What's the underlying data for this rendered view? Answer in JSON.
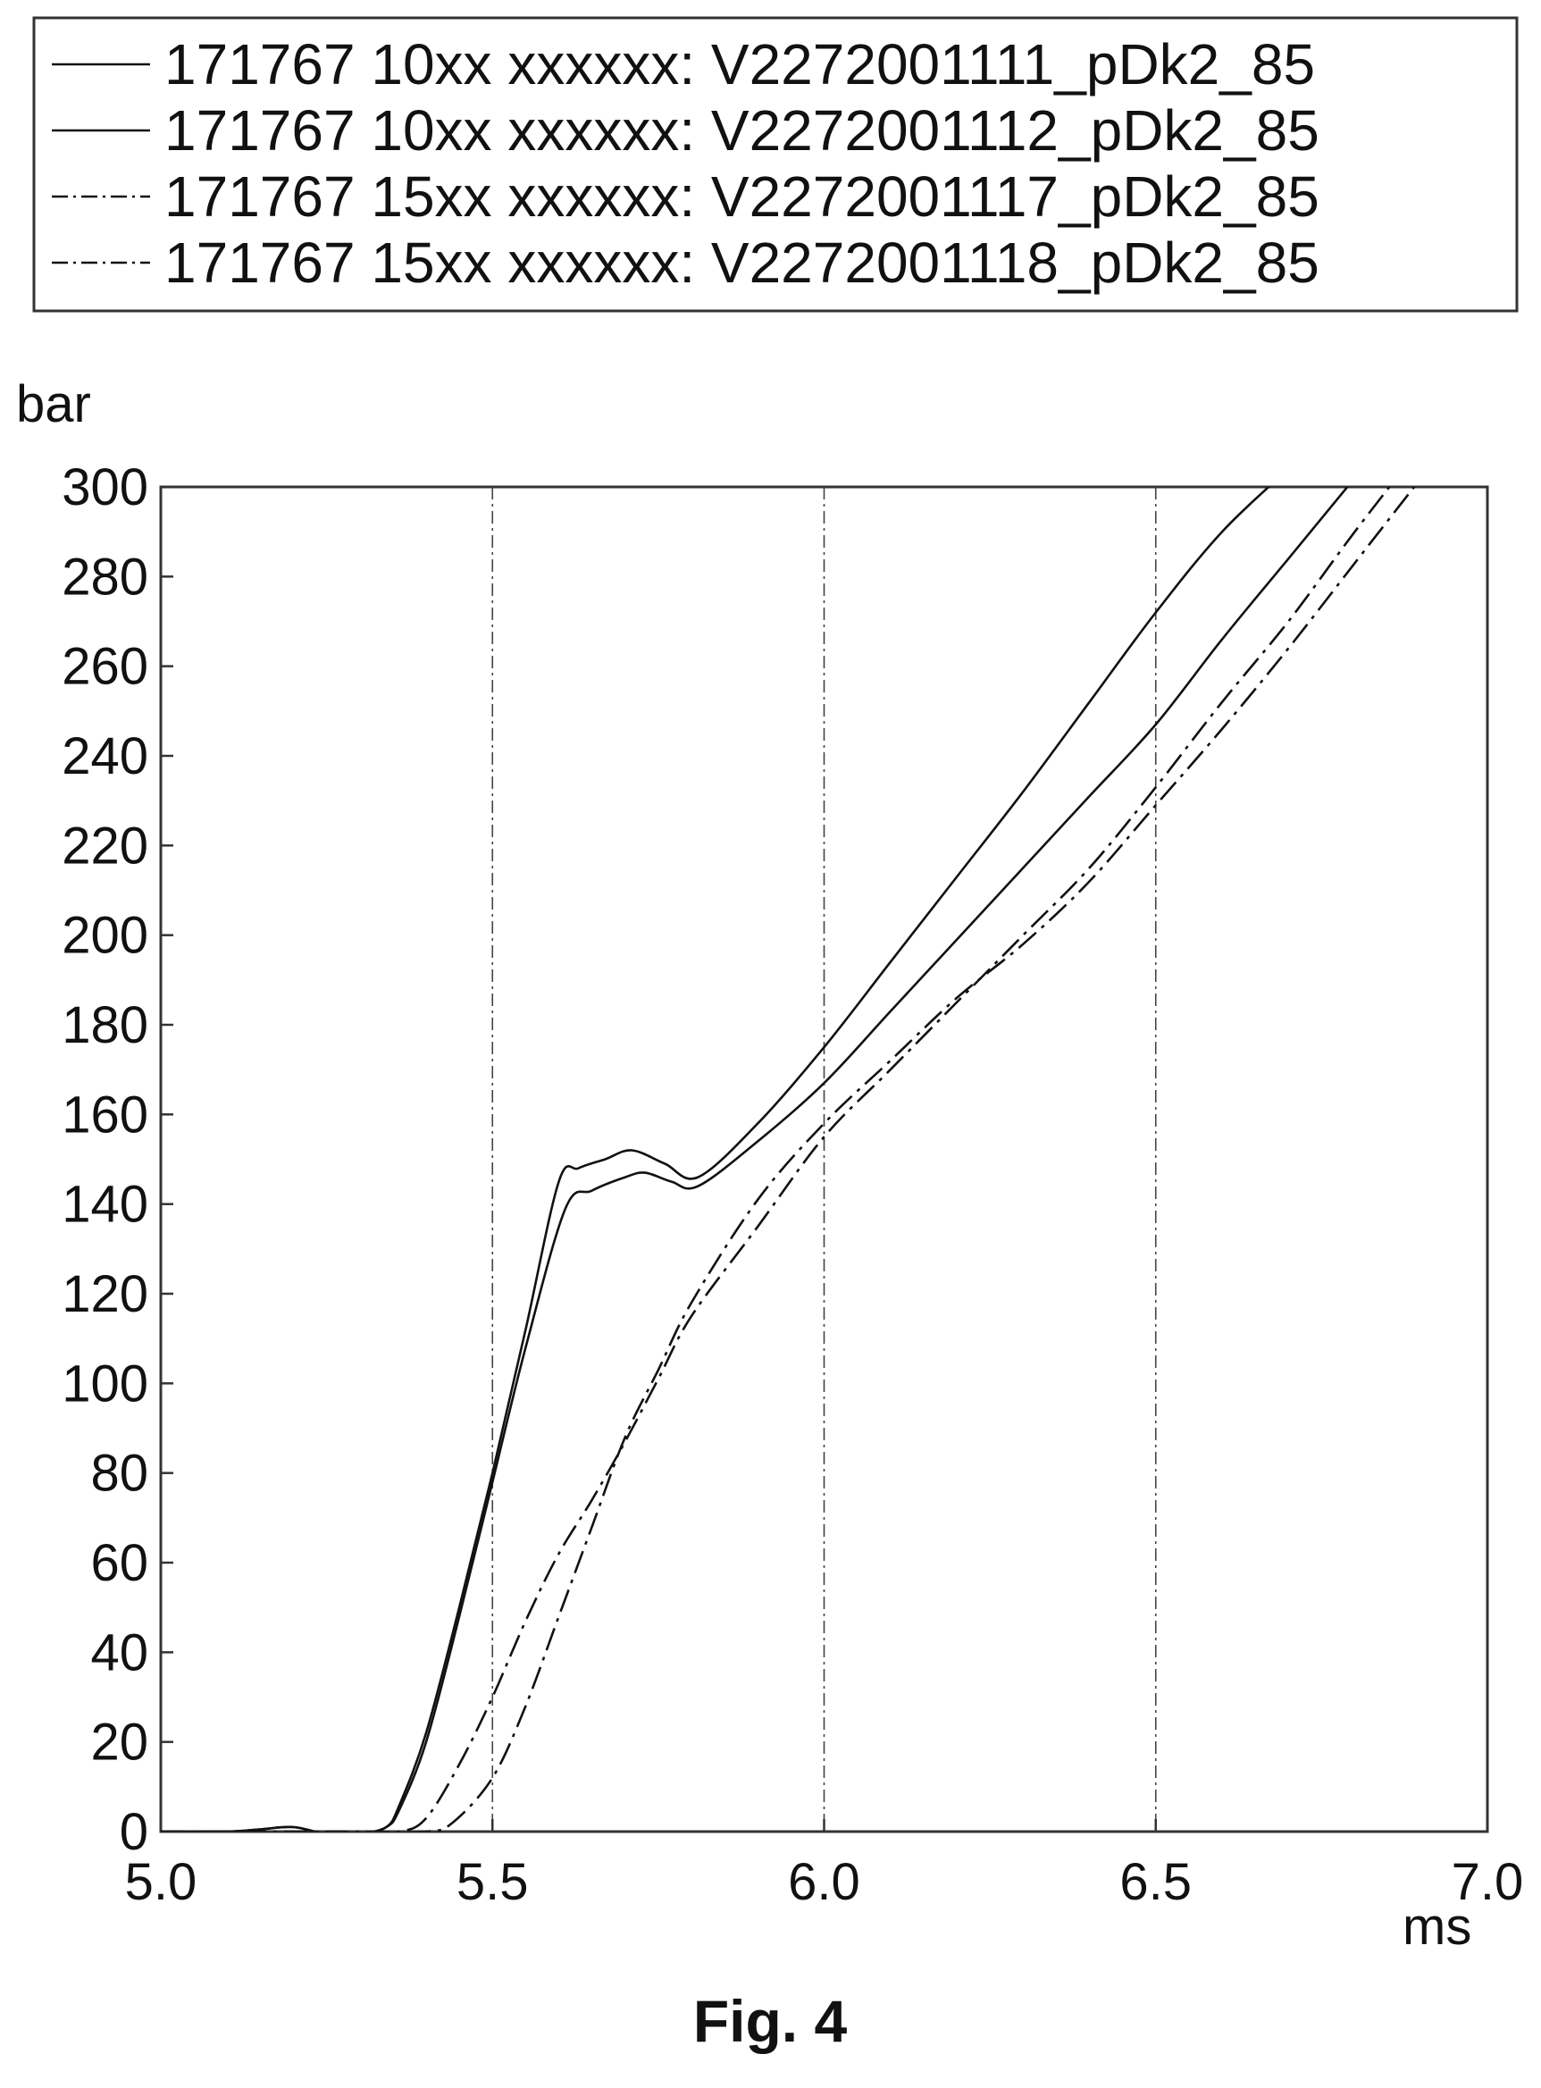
{
  "figure": {
    "caption": "Fig. 4"
  },
  "chart_data": {
    "type": "line",
    "xlabel": "ms",
    "ylabel": "bar",
    "xlim": [
      5.0,
      7.0
    ],
    "ylim": [
      0,
      300
    ],
    "x_ticks": [
      "5.0",
      "5.5",
      "6.0",
      "6.5",
      "7.0"
    ],
    "y_ticks": [
      "0",
      "20",
      "40",
      "60",
      "80",
      "100",
      "120",
      "140",
      "160",
      "180",
      "200",
      "220",
      "240",
      "260",
      "280",
      "300"
    ],
    "vertical_reference_lines": [
      5.5,
      6.0,
      6.5
    ],
    "legend_placement": "top, above plot",
    "colors": {
      "line": "#111111",
      "frame": "#222222"
    },
    "series": [
      {
        "name": "171767 10xx xxxxxx: V2272001111_pDk2_85",
        "style": "solid",
        "x": [
          5.0,
          5.1,
          5.15,
          5.2,
          5.25,
          5.3,
          5.34,
          5.36,
          5.4,
          5.45,
          5.5,
          5.55,
          5.6,
          5.63,
          5.67,
          5.71,
          5.76,
          5.81,
          5.9,
          6.0,
          6.1,
          6.2,
          6.3,
          6.4,
          6.5,
          6.6,
          6.7
        ],
        "y": [
          0,
          0,
          0.5,
          1,
          -0.5,
          -0.5,
          1,
          6,
          22,
          50,
          80,
          112,
          145,
          148,
          150,
          152,
          149,
          146,
          158,
          175,
          194,
          213,
          232,
          252,
          272,
          290,
          304
        ]
      },
      {
        "name": "171767 10xx xxxxxx: V2272001112_pDk2_85",
        "style": "solid",
        "x": [
          5.0,
          5.1,
          5.15,
          5.2,
          5.25,
          5.3,
          5.34,
          5.36,
          5.4,
          5.45,
          5.5,
          5.55,
          5.61,
          5.65,
          5.7,
          5.73,
          5.77,
          5.81,
          5.9,
          6.0,
          6.1,
          6.2,
          6.3,
          6.4,
          6.5,
          6.6,
          6.7,
          6.8
        ],
        "y": [
          0,
          0,
          0.5,
          1,
          -0.5,
          -0.5,
          1,
          5,
          20,
          48,
          78,
          108,
          139,
          143,
          146,
          147,
          145,
          144,
          154,
          167,
          183,
          199,
          215,
          231,
          247,
          266,
          284,
          302
        ]
      },
      {
        "name": "171767 15xx xxxxxx: V2272001117_pDk2_85",
        "style": "dash-dot",
        "x": [
          5.0,
          5.1,
          5.2,
          5.3,
          5.36,
          5.4,
          5.45,
          5.5,
          5.55,
          5.6,
          5.65,
          5.7,
          5.75,
          5.8,
          5.9,
          6.0,
          6.1,
          6.2,
          6.3,
          6.4,
          6.5,
          6.6,
          6.7,
          6.8,
          6.9
        ],
        "y": [
          0,
          0,
          0,
          0,
          0,
          3,
          15,
          30,
          47,
          62,
          74,
          87,
          101,
          115,
          135,
          155,
          170,
          185,
          200,
          215,
          233,
          252,
          270,
          290,
          309
        ]
      },
      {
        "name": "171767 15xx xxxxxx: V2272001118_pDk2_85",
        "style": "dash-dot",
        "x": [
          5.0,
          5.1,
          5.2,
          5.3,
          5.4,
          5.44,
          5.5,
          5.55,
          5.6,
          5.65,
          5.7,
          5.75,
          5.8,
          5.9,
          6.0,
          6.1,
          6.2,
          6.3,
          6.4,
          6.5,
          6.6,
          6.7,
          6.8,
          6.9
        ],
        "y": [
          0,
          0,
          0,
          0,
          0,
          2,
          12,
          28,
          48,
          68,
          88,
          103,
          118,
          141,
          158,
          172,
          186,
          198,
          212,
          229,
          246,
          264,
          283,
          302
        ]
      }
    ]
  }
}
